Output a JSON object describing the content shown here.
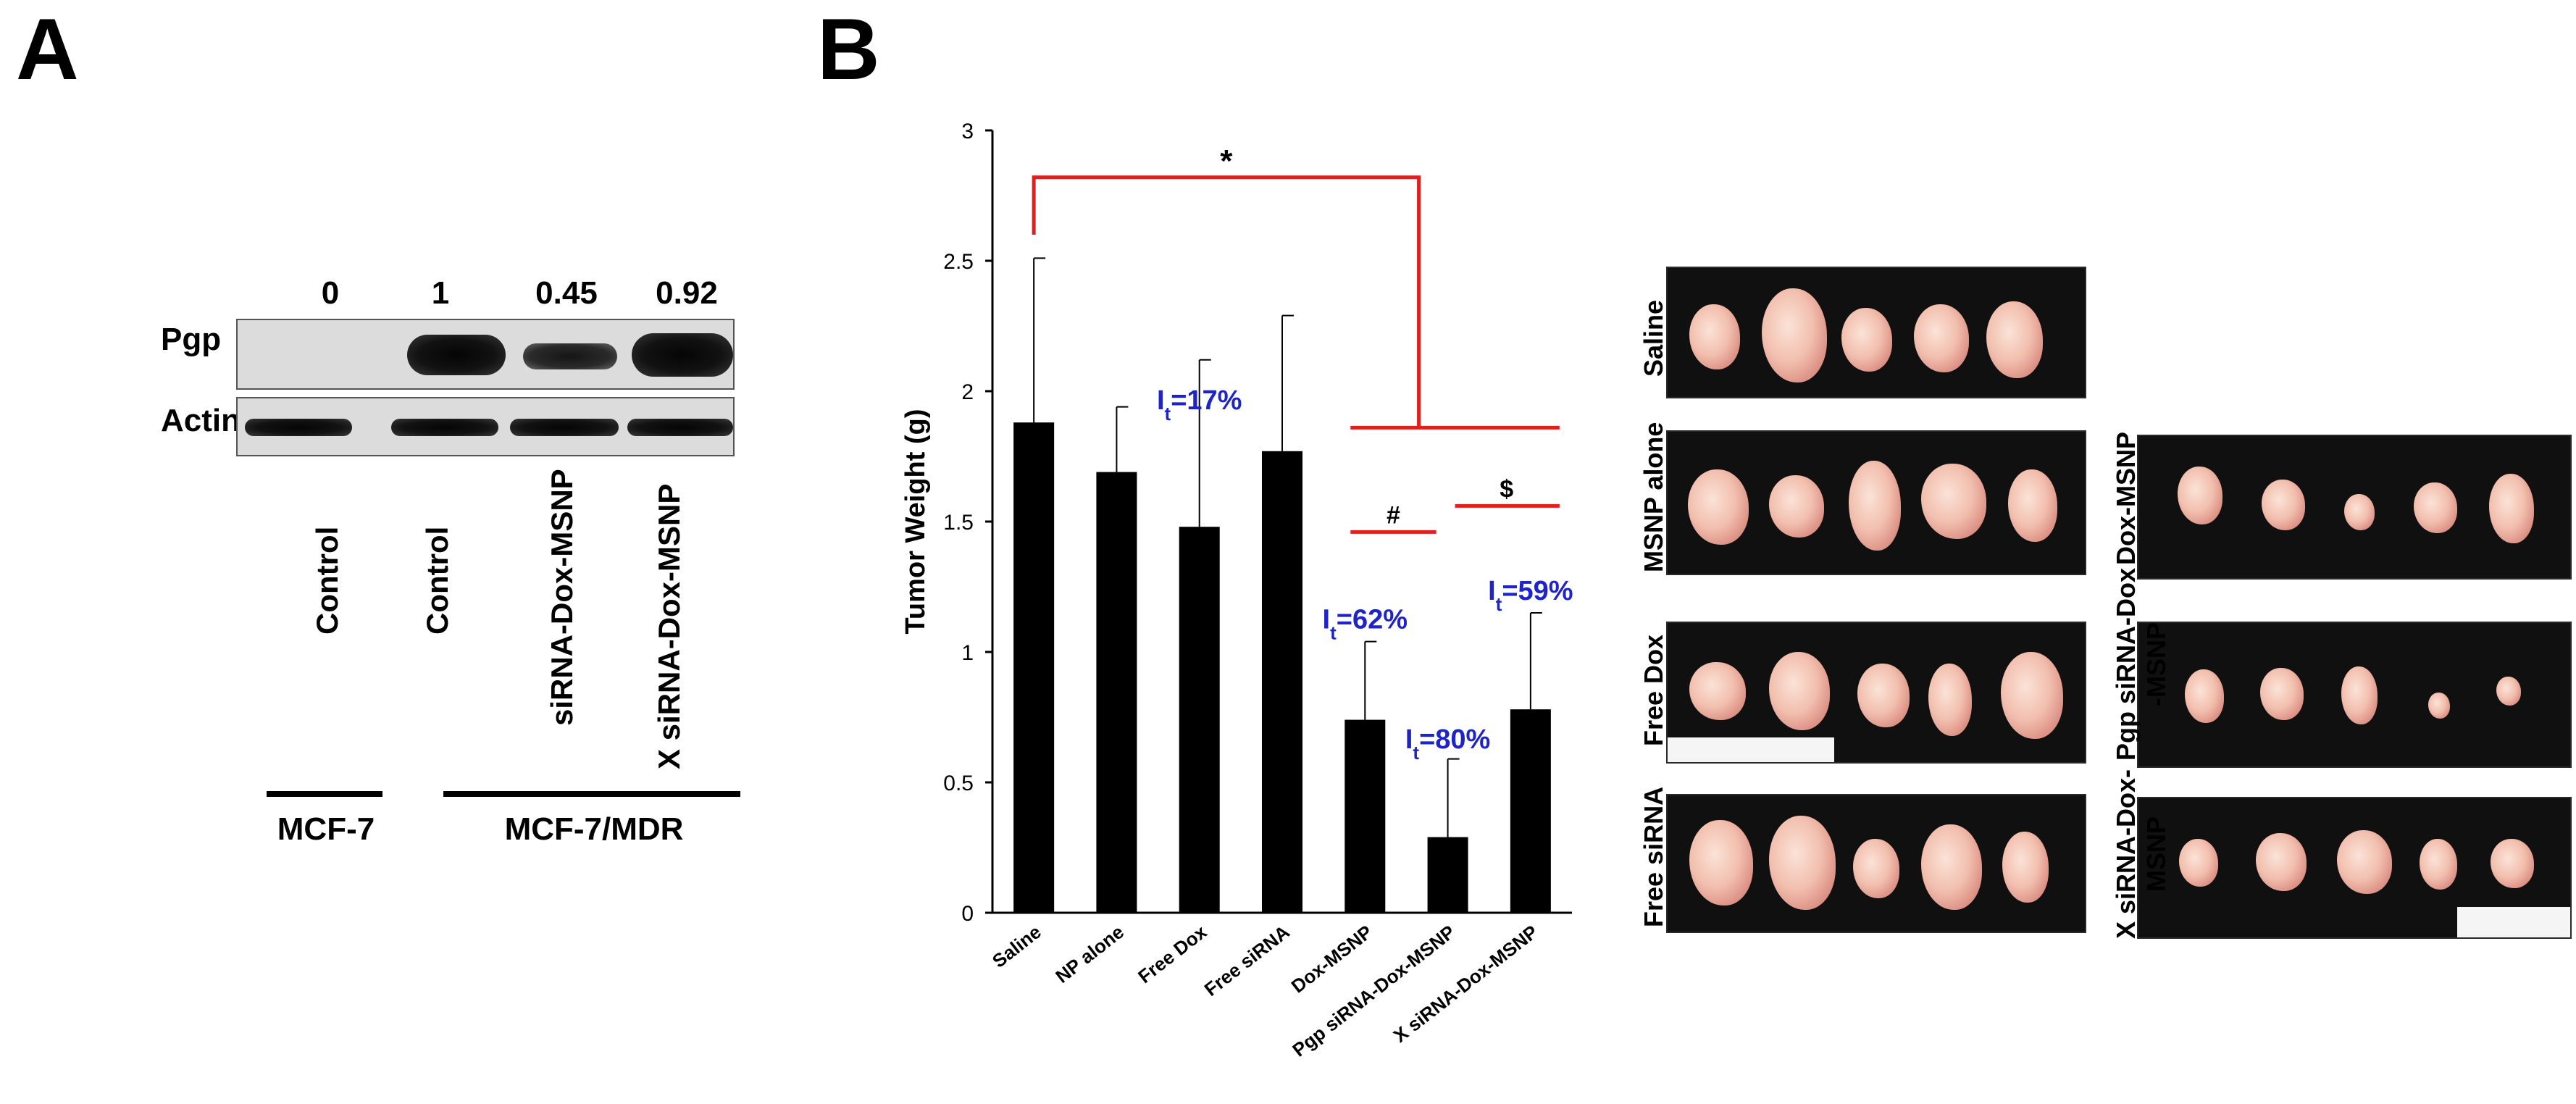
{
  "panel_a": {
    "letter": "A",
    "ratios": [
      "0",
      "1",
      "0.45",
      "0.92"
    ],
    "band_labels": [
      "Pgp",
      "Actin"
    ],
    "lanes": [
      "Control",
      "Control",
      "siRNA-Dox-MSNP",
      "X siRNA-Dox-MSNP"
    ],
    "groups": [
      "MCF-7",
      "MCF-7/MDR"
    ]
  },
  "panel_b": {
    "letter": "B"
  },
  "chart_data": {
    "type": "bar",
    "title": "",
    "xlabel": "",
    "ylabel": "Tumor Weight (g)",
    "ylim": [
      0,
      3
    ],
    "yticks": [
      "0",
      "0.5",
      "1",
      "1.5",
      "2",
      "2.5",
      "3"
    ],
    "categories": [
      "Saline",
      "NP alone",
      "Free Dox",
      "Free siRNA",
      "Dox-MSNP",
      "Pgp siRNA-Dox-MSNP",
      "X siRNA-Dox-MSNP"
    ],
    "values": [
      1.88,
      1.69,
      1.48,
      1.77,
      0.74,
      0.29,
      0.78
    ],
    "errors": [
      0.63,
      0.25,
      0.64,
      0.52,
      0.3,
      0.3,
      0.37
    ],
    "bar_color": "#000000",
    "annotation_color": "#1f24c8",
    "significance_color": "#e0201c",
    "inhibition_labels": [
      {
        "category": "Free Dox",
        "prefix": "I",
        "sub": "t",
        "text": "=17%"
      },
      {
        "category": "Dox-MSNP",
        "prefix": "I",
        "sub": "t",
        "text": "=62%"
      },
      {
        "category": "Pgp siRNA-Dox-MSNP",
        "prefix": "I",
        "sub": "t",
        "text": "=80%"
      },
      {
        "category": "X siRNA-Dox-MSNP",
        "prefix": "I",
        "sub": "t",
        "text": "=59%"
      }
    ],
    "significance": [
      {
        "symbol": "*"
      },
      {
        "symbol": "#"
      },
      {
        "symbol": "$"
      }
    ]
  },
  "photos": {
    "labels": [
      [
        "Saline"
      ],
      [
        "MSNP alone"
      ],
      [
        "Free Dox"
      ],
      [
        "Free siRNA"
      ],
      [
        "Dox-MSNP"
      ],
      [
        "Pgp siRNA-Dox",
        "-MSNP"
      ],
      [
        "X siRNA-Dox-",
        "MSNP"
      ]
    ]
  }
}
